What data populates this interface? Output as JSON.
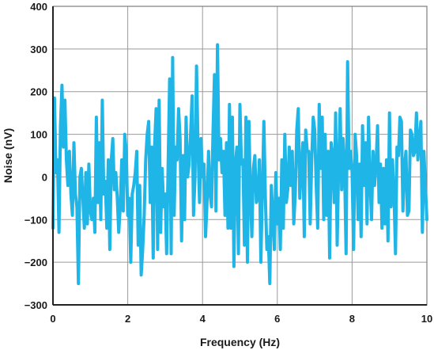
{
  "chart_data": {
    "type": "line",
    "title": "",
    "xlabel": "Frequency (Hz)",
    "ylabel": "Noise (nV)",
    "xlim": [
      0,
      10
    ],
    "ylim": [
      -300,
      400
    ],
    "xticks": [
      0,
      2,
      4,
      6,
      8,
      10
    ],
    "yticks": [
      -300,
      -200,
      -100,
      0,
      100,
      200,
      300,
      400
    ],
    "xtick_labels": [
      "0",
      "2",
      "4",
      "6",
      "8",
      "10"
    ],
    "ytick_labels": [
      "−300",
      "−200",
      "−100",
      "0",
      "100",
      "200",
      "300",
      "400"
    ],
    "grid": true,
    "colors": {
      "series": "#1fb5e6",
      "grid": "#9a9a9a",
      "axis": "#222222"
    },
    "series": [
      {
        "x": [
          0.0,
          0.04,
          0.08,
          0.12,
          0.16,
          0.2,
          0.24,
          0.28,
          0.32,
          0.36,
          0.4,
          0.44,
          0.48,
          0.52,
          0.56,
          0.6,
          0.64,
          0.68,
          0.72,
          0.76,
          0.8,
          0.84,
          0.88,
          0.92,
          0.96,
          1.0,
          1.04,
          1.08,
          1.12,
          1.16,
          1.2,
          1.24,
          1.28,
          1.32,
          1.36,
          1.4,
          1.44,
          1.48,
          1.52,
          1.56,
          1.6,
          1.64,
          1.68,
          1.72,
          1.76,
          1.8,
          1.84,
          1.88,
          1.92,
          1.96,
          2.0,
          2.04,
          2.08,
          2.12,
          2.16,
          2.2,
          2.24,
          2.28,
          2.32,
          2.36,
          2.4,
          2.44,
          2.48,
          2.52,
          2.56,
          2.6,
          2.64,
          2.68,
          2.72,
          2.76,
          2.8,
          2.84,
          2.88,
          2.92,
          2.96,
          3.0,
          3.04,
          3.08,
          3.12,
          3.16,
          3.2,
          3.24,
          3.28,
          3.32,
          3.36,
          3.4,
          3.44,
          3.48,
          3.52,
          3.56,
          3.6,
          3.64,
          3.68,
          3.72,
          3.76,
          3.8,
          3.84,
          3.88,
          3.92,
          3.96,
          4.0,
          4.04,
          4.08,
          4.12,
          4.16,
          4.2,
          4.24,
          4.28,
          4.32,
          4.36,
          4.4,
          4.44,
          4.48,
          4.52,
          4.56,
          4.6,
          4.64,
          4.68,
          4.72,
          4.76,
          4.8,
          4.84,
          4.88,
          4.92,
          4.96,
          5.0,
          5.04,
          5.08,
          5.12,
          5.16,
          5.2,
          5.24,
          5.28,
          5.32,
          5.36,
          5.4,
          5.44,
          5.48,
          5.52,
          5.56,
          5.6,
          5.64,
          5.68,
          5.72,
          5.76,
          5.8,
          5.84,
          5.88,
          5.92,
          5.96,
          6.0,
          6.04,
          6.08,
          6.12,
          6.16,
          6.2,
          6.24,
          6.28,
          6.32,
          6.36,
          6.4,
          6.44,
          6.48,
          6.52,
          6.56,
          6.6,
          6.64,
          6.68,
          6.72,
          6.76,
          6.8,
          6.84,
          6.88,
          6.92,
          6.96,
          7.0,
          7.04,
          7.08,
          7.12,
          7.16,
          7.2,
          7.24,
          7.28,
          7.32,
          7.36,
          7.4,
          7.44,
          7.48,
          7.52,
          7.56,
          7.6,
          7.64,
          7.68,
          7.72,
          7.76,
          7.8,
          7.84,
          7.88,
          7.92,
          7.96,
          8.0,
          8.04,
          8.08,
          8.12,
          8.16,
          8.2,
          8.24,
          8.28,
          8.32,
          8.36,
          8.4,
          8.44,
          8.48,
          8.52,
          8.56,
          8.6,
          8.64,
          8.68,
          8.72,
          8.76,
          8.8,
          8.84,
          8.88,
          8.92,
          8.96,
          9.0,
          9.04,
          9.08,
          9.12,
          9.16,
          9.2,
          9.24,
          9.28,
          9.32,
          9.36,
          9.4,
          9.44,
          9.48,
          9.52,
          9.56,
          9.6,
          9.64,
          9.68,
          9.72,
          9.76,
          9.8,
          9.84,
          9.88,
          9.92,
          9.96,
          10.0
        ],
        "values": [
          -120,
          185,
          10,
          40,
          -130,
          120,
          215,
          70,
          180,
          40,
          -20,
          60,
          -40,
          -90,
          80,
          -40,
          -70,
          -250,
          0,
          20,
          -50,
          -120,
          10,
          -110,
          30,
          -80,
          -100,
          -50,
          -130,
          140,
          -60,
          80,
          -100,
          180,
          -40,
          -10,
          -120,
          40,
          -170,
          40,
          90,
          -30,
          10,
          -50,
          -130,
          -70,
          40,
          -80,
          100,
          60,
          -90,
          -50,
          -200,
          -40,
          -20,
          10,
          60,
          -160,
          -20,
          -230,
          -170,
          -90,
          40,
          100,
          130,
          -60,
          70,
          -190,
          80,
          160,
          -170,
          180,
          -130,
          20,
          -70,
          -40,
          -180,
          30,
          230,
          -180,
          280,
          -90,
          70,
          40,
          160,
          90,
          -150,
          50,
          -100,
          140,
          0,
          30,
          100,
          190,
          -90,
          0,
          260,
          70,
          -60,
          90,
          0,
          30,
          -140,
          -60,
          60,
          -40,
          -70,
          100,
          240,
          -80,
          310,
          40,
          90,
          10,
          60,
          -90,
          80,
          -120,
          170,
          -120,
          140,
          -210,
          30,
          70,
          -180,
          170,
          30,
          40,
          -160,
          140,
          -200,
          130,
          -40,
          -140,
          20,
          50,
          -60,
          -50,
          40,
          -200,
          -30,
          130,
          -50,
          -170,
          -140,
          -250,
          -20,
          -90,
          -170,
          10,
          -110,
          -50,
          -170,
          40,
          -120,
          100,
          -60,
          -30,
          70,
          -20,
          60,
          -110,
          -40,
          110,
          160,
          -50,
          20,
          80,
          -140,
          110,
          60,
          60,
          -110,
          40,
          140,
          110,
          -20,
          -120,
          170,
          20,
          140,
          -100,
          100,
          -90,
          60,
          -190,
          80,
          50,
          -60,
          150,
          -160,
          30,
          160,
          -30,
          90,
          20,
          -180,
          270,
          20,
          60,
          10,
          -170,
          100,
          50,
          -100,
          30,
          -140,
          120,
          -20,
          80,
          -110,
          140,
          -10,
          -100,
          60,
          -20,
          30,
          120,
          -60,
          30,
          -120,
          20,
          -110,
          40,
          -150,
          150,
          -70,
          40,
          -40,
          -180,
          70,
          50,
          140,
          130,
          -80,
          20,
          60,
          -90,
          -80,
          110,
          100,
          50,
          60,
          150,
          40,
          90,
          130,
          -130,
          60,
          -20,
          -100
        ]
      }
    ]
  }
}
